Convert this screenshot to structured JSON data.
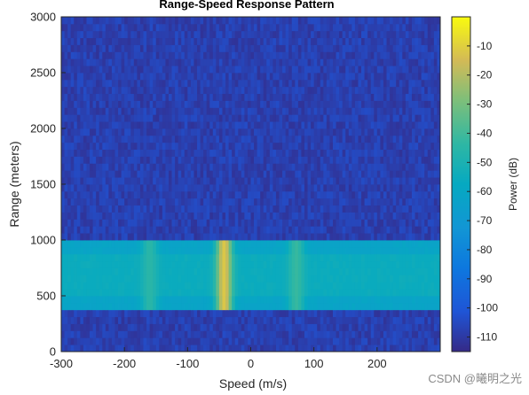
{
  "chart_data": {
    "type": "heatmap",
    "title": "Range-Speed Response Pattern",
    "xlabel": "Speed (m/s)",
    "ylabel": "Range (meters)",
    "xlim": [
      -300,
      300
    ],
    "ylim": [
      0,
      3000
    ],
    "xticks": [
      -300,
      -200,
      -100,
      0,
      100,
      200
    ],
    "yticks": [
      0,
      500,
      1000,
      1500,
      2000,
      2500,
      3000
    ],
    "colormap": "parula",
    "colorbar": {
      "label": "Power (dB)",
      "range": [
        -115,
        0
      ],
      "ticks": [
        -10,
        -20,
        -30,
        -40,
        -50,
        -60,
        -70,
        -80,
        -90,
        -100,
        -110
      ]
    },
    "background_level_db": -108,
    "bands": [
      {
        "range": [
          380,
          970
        ],
        "level_db": -62
      },
      {
        "range": [
          520,
          860
        ],
        "level_db": -56
      }
    ],
    "peaks": [
      {
        "speed": -160,
        "level_db": -45
      },
      {
        "speed": -42,
        "level_db": -12
      },
      {
        "speed": 72,
        "level_db": -42
      }
    ],
    "grid": false
  },
  "watermark": "CSDN @曦明之光"
}
